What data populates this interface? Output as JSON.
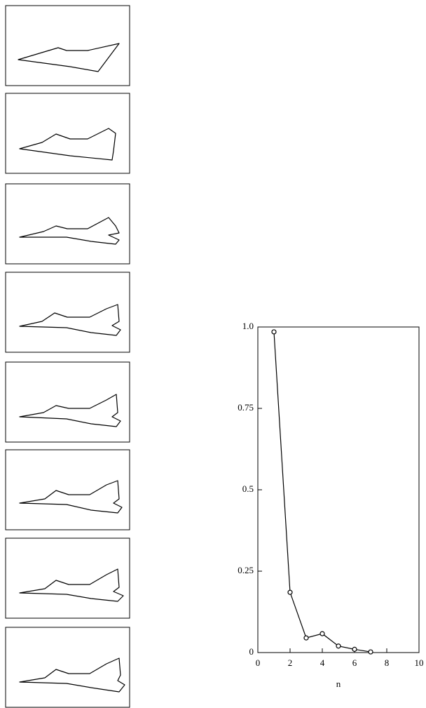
{
  "chart_data": {
    "type": "line",
    "xlabel": "n",
    "x": [
      1,
      2,
      3,
      4,
      5,
      6,
      7
    ],
    "values": [
      0.985,
      0.185,
      0.045,
      0.058,
      0.02,
      0.01,
      0.002
    ],
    "color": "#000000",
    "xlim": [
      0,
      10
    ],
    "xticks": [
      0,
      2,
      4,
      6,
      8,
      10
    ],
    "ylim": [
      0,
      1
    ],
    "yticks": [
      0,
      0.25,
      0.5,
      0.75,
      {
        "value": 1,
        "label": "1.0"
      }
    ],
    "grid": false
  }
}
